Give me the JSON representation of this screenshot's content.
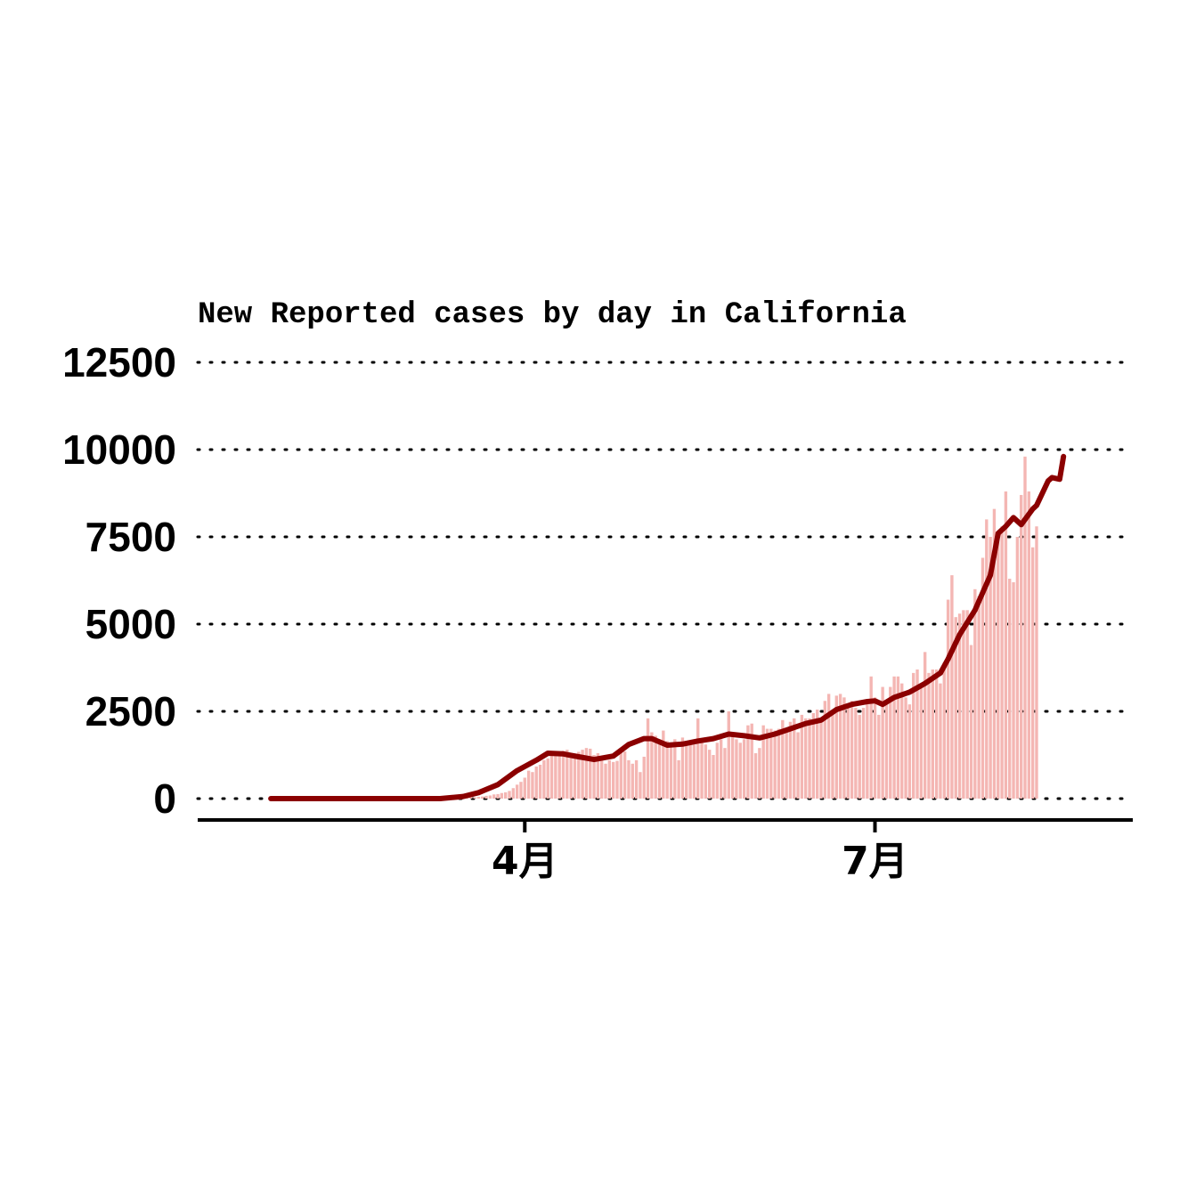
{
  "chart_data": {
    "type": "bar",
    "title": "New Reported cases by day in California",
    "xlabel": "",
    "ylabel": "",
    "ylim": [
      0,
      12500
    ],
    "yticks": [
      0,
      2500,
      5000,
      7500,
      10000,
      12500
    ],
    "x_start": "2020-01-26",
    "x_end": "2020-08-19",
    "x_range": [
      "2020-01-07",
      "2020-09-06"
    ],
    "xticks": [
      {
        "date": "2020-04-01",
        "label": "4月"
      },
      {
        "date": "2020-07-01",
        "label": "7月"
      }
    ],
    "grid": "horizontal dotted",
    "legend": "none",
    "colors": {
      "bars": "#f4b6b3",
      "line": "#8b0000"
    },
    "series": [
      {
        "type": "bar",
        "values": [
          0,
          0,
          0,
          0,
          0,
          0,
          0,
          0,
          0,
          0,
          0,
          0,
          0,
          0,
          0,
          0,
          0,
          0,
          0,
          0,
          0,
          0,
          0,
          0,
          0,
          0,
          0,
          0,
          0,
          0,
          0,
          0,
          0,
          0,
          0,
          0,
          0,
          2,
          3,
          5,
          0,
          0,
          8,
          10,
          10,
          12,
          15,
          20,
          20,
          25,
          30,
          30,
          40,
          35,
          50,
          60,
          80,
          90,
          120,
          130,
          160,
          180,
          220,
          300,
          400,
          480,
          600,
          800,
          760,
          920,
          970,
          1100,
          1150,
          1250,
          1300,
          1350,
          1370,
          1400,
          1300,
          1250,
          1340,
          1400,
          1450,
          1430,
          1250,
          1300,
          1200,
          1000,
          1100,
          1050,
          1080,
          1400,
          1350,
          1100,
          1000,
          1100,
          760,
          1200,
          2300,
          1900,
          1800,
          1700,
          1950,
          1650,
          1500,
          1700,
          1100,
          1750,
          1650,
          1600,
          1550,
          2300,
          1650,
          1550,
          1400,
          1250,
          1600,
          1700,
          1450,
          2500,
          1800,
          1700,
          1600,
          1700,
          2100,
          2150,
          1300,
          1450,
          2100,
          2000,
          2000,
          1950,
          2000,
          2250,
          2000,
          2200,
          2300,
          1900,
          2400,
          2300,
          2300,
          2450,
          2550,
          2200,
          2800,
          3000,
          2500,
          2950,
          3000,
          2900,
          2700,
          2800,
          2600,
          2400,
          2600,
          2800,
          3500,
          2900,
          2400,
          3200,
          2800,
          3200,
          3500,
          3500,
          3300,
          2900,
          2700,
          3600,
          3700,
          3200,
          4200,
          3600,
          3700,
          3700,
          3300,
          3900,
          5700,
          6400,
          5200,
          5300,
          5400,
          5400,
          4400,
          6000,
          5800,
          6900,
          8000,
          7500,
          8300,
          7600,
          7800,
          8800,
          6300,
          6200,
          7500,
          8700,
          9800,
          8800,
          7200,
          7800
        ]
      },
      {
        "type": "line",
        "name": "",
        "anchors": [
          [
            "2020-01-26",
            0
          ],
          [
            "2020-02-20",
            0
          ],
          [
            "2020-03-10",
            0
          ],
          [
            "2020-03-16",
            60
          ],
          [
            "2020-03-20",
            170
          ],
          [
            "2020-03-25",
            400
          ],
          [
            "2020-03-30",
            800
          ],
          [
            "2020-04-04",
            1100
          ],
          [
            "2020-04-07",
            1300
          ],
          [
            "2020-04-11",
            1280
          ],
          [
            "2020-04-15",
            1200
          ],
          [
            "2020-04-19",
            1120
          ],
          [
            "2020-04-24",
            1220
          ],
          [
            "2020-04-28",
            1550
          ],
          [
            "2020-05-02",
            1720
          ],
          [
            "2020-05-04",
            1720
          ],
          [
            "2020-05-08",
            1530
          ],
          [
            "2020-05-12",
            1560
          ],
          [
            "2020-05-16",
            1650
          ],
          [
            "2020-05-20",
            1720
          ],
          [
            "2020-05-24",
            1850
          ],
          [
            "2020-05-28",
            1800
          ],
          [
            "2020-06-01",
            1740
          ],
          [
            "2020-06-05",
            1850
          ],
          [
            "2020-06-09",
            2000
          ],
          [
            "2020-06-13",
            2150
          ],
          [
            "2020-06-17",
            2250
          ],
          [
            "2020-06-21",
            2550
          ],
          [
            "2020-06-25",
            2700
          ],
          [
            "2020-06-29",
            2780
          ],
          [
            "2020-07-01",
            2800
          ],
          [
            "2020-07-03",
            2700
          ],
          [
            "2020-07-06",
            2900
          ],
          [
            "2020-07-10",
            3050
          ],
          [
            "2020-07-14",
            3300
          ],
          [
            "2020-07-18",
            3600
          ],
          [
            "2020-07-20",
            4000
          ],
          [
            "2020-07-23",
            4700
          ],
          [
            "2020-07-27",
            5400
          ],
          [
            "2020-07-31",
            6400
          ],
          [
            "2020-08-02",
            7600
          ],
          [
            "2020-08-04",
            7800
          ],
          [
            "2020-08-06",
            8050
          ],
          [
            "2020-08-08",
            7850
          ],
          [
            "2020-08-11",
            8300
          ],
          [
            "2020-08-12",
            8400
          ],
          [
            "2020-08-15",
            9100
          ],
          [
            "2020-08-16",
            9200
          ],
          [
            "2020-08-18",
            9150
          ],
          [
            "2020-08-19",
            9800
          ]
        ]
      }
    ]
  }
}
